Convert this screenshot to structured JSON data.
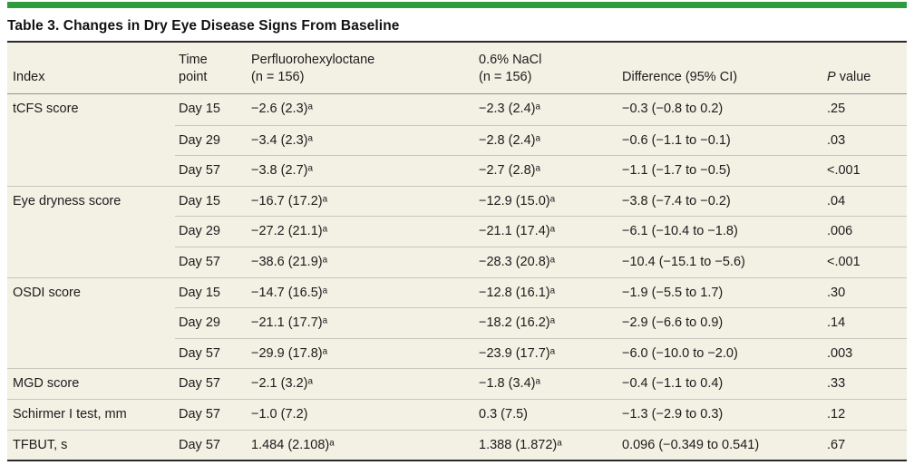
{
  "page": {
    "accent_color": "#2e9b3e",
    "table_background": "#f3f0e4",
    "dark_rule_color": "#2a2a28",
    "row_line_color": "#c9c7bd",
    "header_line_color": "#98968c"
  },
  "table": {
    "title": "Table 3. Changes in Dry Eye Disease Signs From Baseline",
    "header": {
      "index": "Index",
      "time_line1": "Time",
      "time_line2": "point",
      "drug_line1": "Perfluorohexyloctane",
      "drug_line2": "(n = 156)",
      "nacl_line1": "0.6% NaCl",
      "nacl_line2": "(n = 156)",
      "difference": "Difference (95% CI)",
      "p_italic": "P",
      "p_rest": " value"
    },
    "rows": [
      {
        "index": "tCFS score",
        "time": "Day 15",
        "drug": "−2.6 (2.3)ᵃ",
        "nacl": "−2.3 (2.4)ᵃ",
        "diff": "−0.3 (−0.8 to 0.2)",
        "p": ".25"
      },
      {
        "index": "",
        "time": "Day 29",
        "drug": "−3.4 (2.3)ᵃ",
        "nacl": "−2.8 (2.4)ᵃ",
        "diff": "−0.6 (−1.1 to −0.1)",
        "p": ".03"
      },
      {
        "index": "",
        "time": "Day 57",
        "drug": "−3.8 (2.7)ᵃ",
        "nacl": "−2.7 (2.8)ᵃ",
        "diff": "−1.1 (−1.7 to −0.5)",
        "p": "<.001"
      },
      {
        "index": "Eye dryness score",
        "time": "Day 15",
        "drug": "−16.7 (17.2)ᵃ",
        "nacl": "−12.9 (15.0)ᵃ",
        "diff": "−3.8 (−7.4 to −0.2)",
        "p": ".04"
      },
      {
        "index": "",
        "time": "Day 29",
        "drug": "−27.2 (21.1)ᵃ",
        "nacl": "−21.1 (17.4)ᵃ",
        "diff": "−6.1 (−10.4 to −1.8)",
        "p": ".006"
      },
      {
        "index": "",
        "time": "Day 57",
        "drug": "−38.6 (21.9)ᵃ",
        "nacl": "−28.3 (20.8)ᵃ",
        "diff": "−10.4 (−15.1 to −5.6)",
        "p": "<.001"
      },
      {
        "index": "OSDI score",
        "time": "Day 15",
        "drug": "−14.7 (16.5)ᵃ",
        "nacl": "−12.8 (16.1)ᵃ",
        "diff": "−1.9 (−5.5 to 1.7)",
        "p": ".30"
      },
      {
        "index": "",
        "time": "Day 29",
        "drug": "−21.1 (17.7)ᵃ",
        "nacl": "−18.2 (16.2)ᵃ",
        "diff": "−2.9 (−6.6 to 0.9)",
        "p": ".14"
      },
      {
        "index": "",
        "time": "Day 57",
        "drug": "−29.9 (17.8)ᵃ",
        "nacl": "−23.9 (17.7)ᵃ",
        "diff": "−6.0 (−10.0 to −2.0)",
        "p": ".003"
      },
      {
        "index": "MGD score",
        "time": "Day 57",
        "drug": "−2.1 (3.2)ᵃ",
        "nacl": "−1.8 (3.4)ᵃ",
        "diff": "−0.4 (−1.1 to 0.4)",
        "p": ".33"
      },
      {
        "index": "Schirmer I test, mm",
        "time": "Day 57",
        "drug": "−1.0 (7.2)",
        "nacl": "0.3 (7.5)",
        "diff": "−1.3 (−2.9 to 0.3)",
        "p": ".12"
      },
      {
        "index": "TFBUT, s",
        "time": "Day 57",
        "drug": "1.484 (2.108)ᵃ",
        "nacl": "1.388 (1.872)ᵃ",
        "diff": "0.096 (−0.349 to 0.541)",
        "p": ".67"
      }
    ]
  }
}
